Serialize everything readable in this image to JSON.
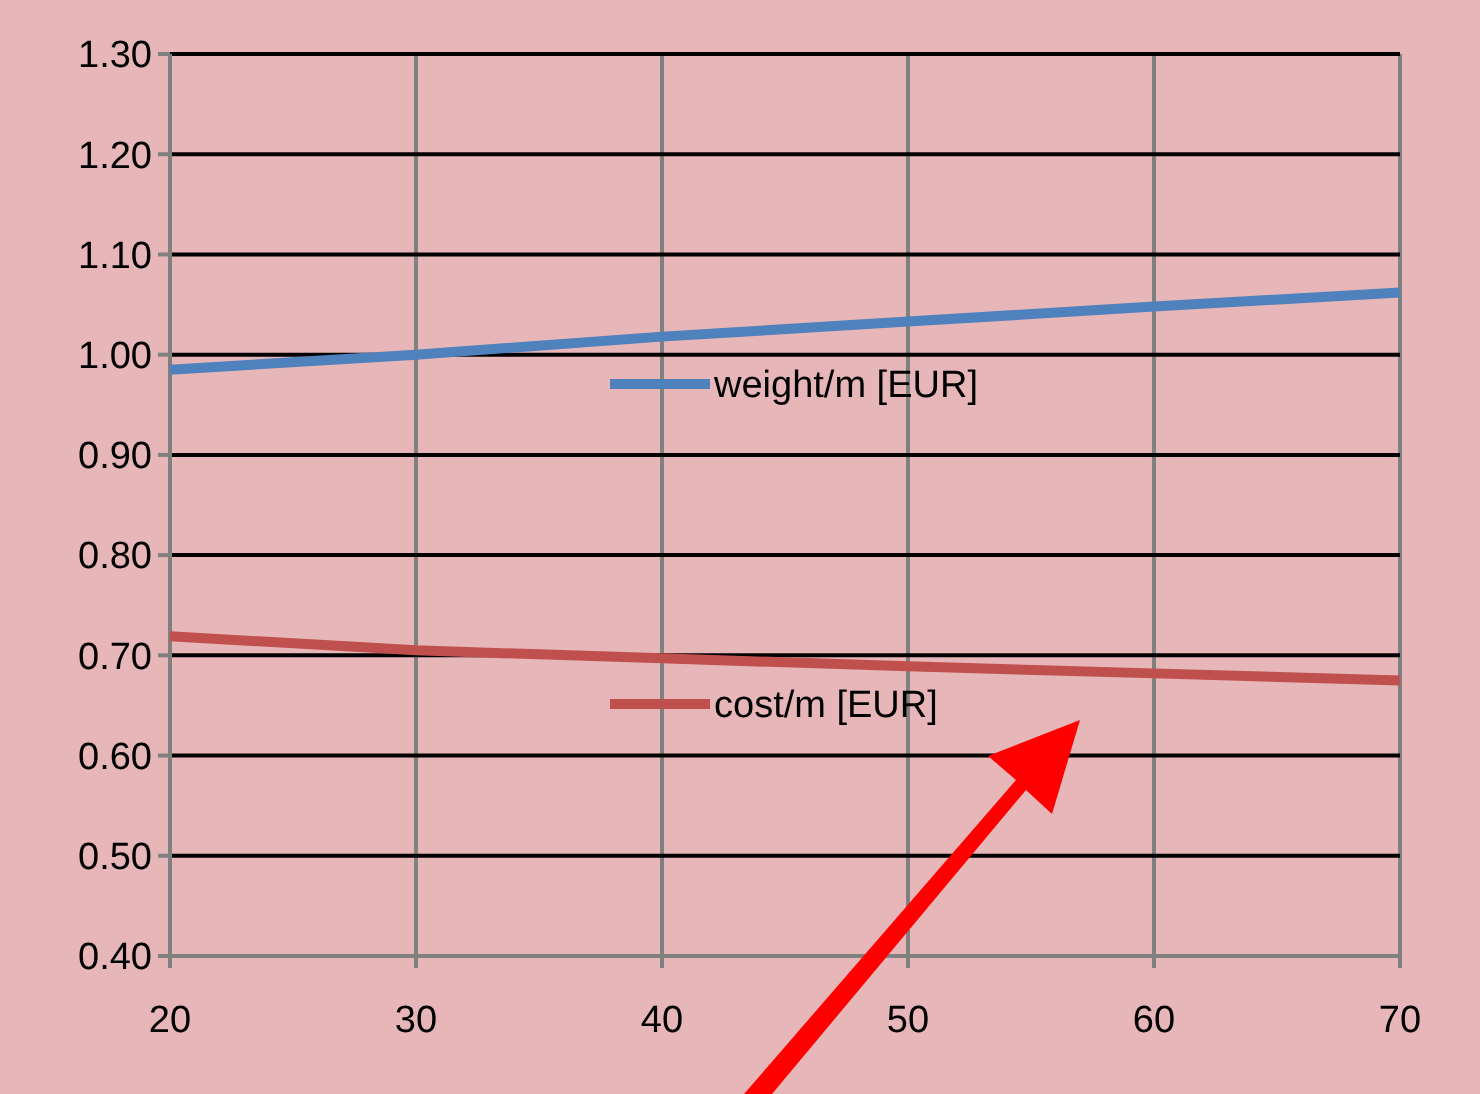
{
  "chart_data": {
    "type": "line",
    "x": [
      20,
      30,
      40,
      50,
      60,
      70
    ],
    "series": [
      {
        "name": "weight/m [EUR]",
        "color": "#4f81bd",
        "values": [
          0.985,
          1.0,
          1.018,
          1.033,
          1.048,
          1.062
        ]
      },
      {
        "name": "cost/m [EUR]",
        "color": "#c0504d",
        "values": [
          0.719,
          0.705,
          0.697,
          0.689,
          0.682,
          0.675
        ]
      }
    ],
    "xlim": [
      20,
      70
    ],
    "xticks": [
      20,
      30,
      40,
      50,
      60,
      70
    ],
    "ylim": [
      0.4,
      1.3
    ],
    "yticks": [
      {
        "value": 0.4,
        "label": "0.40"
      },
      {
        "value": 0.5,
        "label": "0.50"
      },
      {
        "value": 0.6,
        "label": "0.60"
      },
      {
        "value": 0.7,
        "label": "0.70"
      },
      {
        "value": 0.8,
        "label": "0.80"
      },
      {
        "value": 0.9,
        "label": "0.90"
      },
      {
        "value": 1.0,
        "label": "1.00"
      },
      {
        "value": 1.1,
        "label": "1.10"
      },
      {
        "value": 1.2,
        "label": "1.20"
      },
      {
        "value": 1.3,
        "label": "1.30"
      }
    ],
    "grid": true,
    "legend": "center",
    "marker": "none",
    "line_style": "solid"
  }
}
